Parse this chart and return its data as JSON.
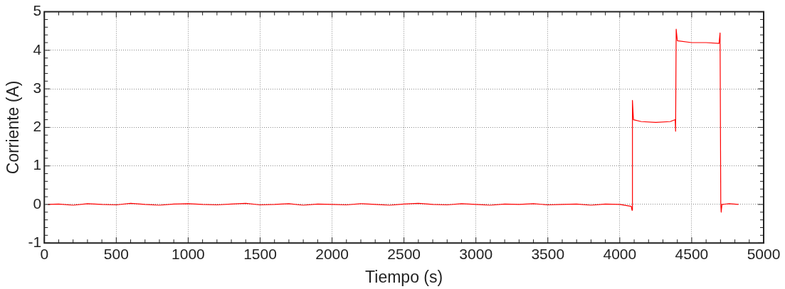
{
  "chart_data": {
    "type": "line",
    "xlabel": "Tiempo (s)",
    "ylabel": "Corriente (A)",
    "x": [
      25,
      100,
      200,
      300,
      400,
      500,
      600,
      700,
      800,
      900,
      1000,
      1100,
      1200,
      1300,
      1400,
      1500,
      1600,
      1700,
      1800,
      1900,
      2000,
      2100,
      2200,
      2300,
      2400,
      2500,
      2600,
      2700,
      2800,
      2900,
      3000,
      3100,
      3200,
      3300,
      3400,
      3500,
      3600,
      3700,
      3800,
      3900,
      4000,
      4080,
      4085,
      4088,
      4095,
      4150,
      4250,
      4350,
      4385,
      4388,
      4392,
      4400,
      4500,
      4600,
      4690,
      4697,
      4702,
      4705,
      4710,
      4760,
      4825
    ],
    "series": [
      {
        "color": "#ff0000",
        "values": [
          0.0,
          0.01,
          -0.02,
          0.02,
          0.0,
          -0.01,
          0.03,
          0.0,
          -0.02,
          0.01,
          0.02,
          0.0,
          -0.01,
          0.01,
          0.03,
          -0.01,
          0.0,
          0.02,
          -0.02,
          0.01,
          0.0,
          -0.01,
          0.02,
          0.0,
          -0.02,
          0.01,
          0.03,
          0.0,
          -0.01,
          0.02,
          0.0,
          -0.02,
          0.01,
          0.0,
          0.02,
          -0.01,
          0.0,
          0.01,
          -0.02,
          0.01,
          0.0,
          -0.05,
          -0.15,
          2.7,
          2.2,
          2.15,
          2.13,
          2.15,
          2.2,
          1.9,
          4.55,
          4.25,
          4.2,
          4.2,
          4.18,
          4.45,
          0.0,
          -0.2,
          0.0,
          0.02,
          0.0
        ]
      }
    ],
    "xlim": [
      0,
      5000
    ],
    "xticks": [
      0,
      500,
      1000,
      1500,
      2000,
      2500,
      3000,
      3500,
      4000,
      4500,
      5000
    ],
    "ylim": [
      -1,
      5
    ],
    "yticks": [
      -1,
      0,
      1,
      2,
      3,
      4,
      5
    ],
    "grid": true,
    "legend": false,
    "marker": "none",
    "line_style": "solid"
  }
}
